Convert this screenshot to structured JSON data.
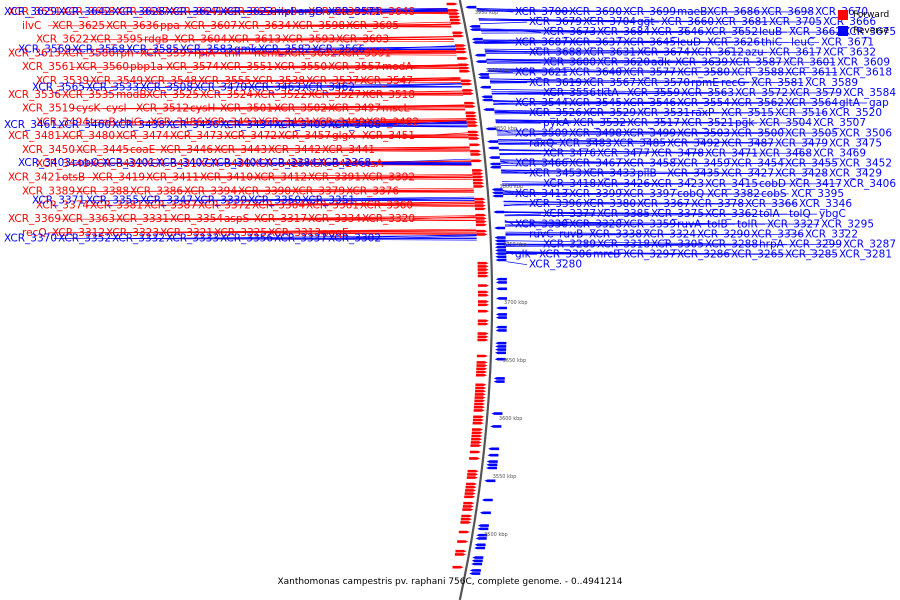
{
  "caption": "Xanthomonas campestris pv. raphani 756C, complete genome. - 0..4941214",
  "colors": {
    "forward": "#ff0000",
    "reverse": "#0000ff",
    "backbone": "#555555"
  },
  "legend": [
    {
      "label": "Forward",
      "color": "#ff0000"
    },
    {
      "label": "Reverse",
      "color": "#0000ff"
    }
  ],
  "ticks": [
    "3950 kbp",
    "3900 kbp",
    "3850 kbp",
    "3800 kbp",
    "3750 kbp",
    "3700 kbp",
    "3650 kbp",
    "3600 kbp",
    "3550 kbp",
    "3500 kbp"
  ],
  "forward_labels": [
    "XCR_3651",
    "XCR_3658",
    "XCR_3667",
    "XCR_3641",
    "XCR_3650",
    "ilvB",
    "XCR_3638",
    "XCR_3648",
    "ilvC",
    "XCR_3625",
    "XCR_3636",
    "ppa",
    "XCR_3607",
    "XCR_3634",
    "XCR_3598",
    "XCR_3605",
    "XCR_3622",
    "XCR_3595",
    "rdgB",
    "XCR_3604",
    "XCR_3613",
    "XCR_3593",
    "XCR_3603",
    "XCR_3615",
    "XCR_3586",
    "rph",
    "XCR_3597",
    "rpiA",
    "thiF",
    "hemL",
    "XCR_3602",
    "XCR_3591",
    "XCR_3561",
    "XCR_3560",
    "pbp1a",
    "XCR_3574",
    "XCR_3551",
    "XCR_3550",
    "XCR_3557",
    "modA",
    "XCR_3539",
    "XCR_3549",
    "XCR_3548",
    "XCR_3555",
    "XCR_3538",
    "XCR_3537",
    "XCR_3547",
    "XCR_3536",
    "XCR_3535",
    "modB",
    "XCR_3525",
    "XCR_3524",
    "XCR_3522",
    "XCR_3527",
    "XCR_3518",
    "XCR_3519",
    "cysK",
    "cysI",
    "XCR_3512",
    "cysH",
    "XCR_3501",
    "XCR_3502",
    "XCR_3497",
    "mscL",
    "XCR_3494",
    "trmB",
    "thiG",
    "XCR_3486",
    "XCR_3493",
    "XCR_3491",
    "XCR_3490",
    "XCR_3482",
    "XCR_3481",
    "XCR_3480",
    "XCR_3474",
    "XCR_3473",
    "XCR_3472",
    "XCR_3457",
    "glgX",
    "XCR_3451",
    "XCR_3450",
    "XCR_3445",
    "coaE",
    "XCR_3446",
    "XCR_3443",
    "XCR_3442",
    "XCR_3441",
    "XCR_3440",
    "XCR_3432",
    "XCR_3431",
    "XCR_3430",
    "XCR_3425",
    "XCR_3424",
    "otsA",
    "XCR_3421",
    "otsB",
    "XCR_3419",
    "XCR_3411",
    "XCR_3410",
    "XCR_3412",
    "XCR_3391",
    "XCR_3392",
    "XCR_3389",
    "XCR_3388",
    "XCR_3386",
    "XCR_3394",
    "XCR_3390",
    "XCR_3379",
    "XCR_3376",
    "XCR_3374",
    "XCR_3381",
    "XCR_3387",
    "XCR_3372",
    "XCR_3364",
    "XCR_3361",
    "XCR_3360",
    "XCR_3369",
    "XCR_3363",
    "XCR_3331",
    "XCR_3354",
    "aspS",
    "XCR_3317",
    "XCR_3334",
    "XCR_3320",
    "recQ",
    "XCR_3312",
    "XCR_3323",
    "XCR_3321",
    "XCR_3325",
    "XCR_3313",
    "pqqE"
  ],
  "reverse_left_labels": [
    "XCR_3629",
    "XCR_3642",
    "XCR_3628",
    "XCR_3627",
    "XCR_3623",
    "mpl",
    "argD",
    "XCR_3571",
    "XCR_3569",
    "XCR_3568",
    "XCR_3585",
    "XCR_3583",
    "gmk",
    "XCR_3582",
    "XCR_3566",
    "XCR_3565",
    "XCR_3533",
    "XCR_3508",
    "XCR_3470",
    "XCR_3463",
    "XCR_3462",
    "XCR_3461",
    "XCR_3460",
    "XCR_3438",
    "XCR_3436",
    "XCR_3434",
    "XCR_3409",
    "XCR_3408",
    "XCR_3403",
    "cobO",
    "XCR_3401",
    "XCR_3407",
    "XCR_3404",
    "XCR_3384",
    "XCR_3368",
    "XCR_3371",
    "XCR_3355",
    "XCR_3347",
    "XCR_3339",
    "XCR_3350",
    "XCR_3351",
    "XCR_3370",
    "XCR_3352",
    "XCR_3332",
    "XCR_3333",
    "XCR_3356",
    "XCR_3337",
    "XCR_3302"
  ],
  "reverse_right_labels": [
    "XCR_3700",
    "XCR_3690",
    "XCR_3699",
    "maeB",
    "XCR_3686",
    "XCR_3698",
    "XCR_3670",
    "XCR_3679",
    "XCR_3704",
    "ggt",
    "XCR_3660",
    "XCR_3681",
    "XCR_3705",
    "XCR_3666",
    "XCR_3673",
    "XCR_3684",
    "XCR_3646",
    "XCR_3652",
    "leuB",
    "XCR_3662",
    "XCR_3675",
    "XCR_3687",
    "XCR_3637",
    "XCR_3645",
    "leuD",
    "XCR_3626",
    "thiC",
    "leuC",
    "XCR_3671",
    "XCR_3688",
    "XCR_3631",
    "XCR_3674",
    "XCR_3612",
    "azu",
    "XCR_3617",
    "XCR_3632",
    "XCR_3600",
    "XCR_3620",
    "adk",
    "XCR_3639",
    "XCR_3587",
    "XCR_3601",
    "XCR_3609",
    "XCR_3621",
    "XCR_3640",
    "XCR_3577",
    "XCR_3580",
    "XCR_3588",
    "XCR_3611",
    "XCR_3618",
    "XCR_3619",
    "XCR_3567",
    "XCR_3570",
    "rpmE",
    "recG",
    "XCR_3581",
    "XCR_3589",
    "XCR_3556",
    "tktA",
    "XCR_3559",
    "XCR_3563",
    "XCR_3572",
    "XCR_3579",
    "XCR_3584",
    "XCR_3544",
    "XCR_3545",
    "XCR_3546",
    "XCR_3554",
    "XCR_3562",
    "XCR_3564",
    "gltA",
    "gap",
    "XCR_3526",
    "XCR_3529",
    "XCR_3531",
    "raxP",
    "XCR_3515",
    "XCR_3516",
    "XCR_3520",
    "pykA",
    "XCR_3532",
    "XCR_3517",
    "XCR_3521",
    "pgk",
    "XCR_3504",
    "XCR_3507",
    "XCR_3509",
    "XCR_3498",
    "XCR_3499",
    "XCR_3503",
    "XCR_3500",
    "XCR_3505",
    "XCR_3506",
    "raxQ",
    "XCR_3483",
    "XCR_3485",
    "XCR_3492",
    "XCR_3487",
    "XCR_3479",
    "XCR_3475",
    "XCR_3476",
    "XCR_3477",
    "XCR_3478",
    "XCR_3471",
    "XCR_3468",
    "XCR_3469",
    "XCR_3466",
    "XCR_3467",
    "XCR_3458",
    "XCR_3459",
    "XCR_3454",
    "XCR_3455",
    "XCR_3452",
    "XCR_3453",
    "XCR_3433",
    "pilB",
    "XCR_3435",
    "XCR_3427",
    "XCR_3428",
    "XCR_3429",
    "XCR_3418",
    "XCR_3426",
    "XCR_3423",
    "XCR_3415",
    "cobD",
    "XCR_3417",
    "XCR_3406",
    "XCR_3413",
    "XCR_3399",
    "XCR_3397",
    "cobQ",
    "XCR_3382",
    "cobS",
    "XCR_3395",
    "XCR_3396",
    "XCR_3380",
    "XCR_3367",
    "XCR_3378",
    "XCR_3366",
    "XCR_3346",
    "XCR_3377",
    "XCR_3385",
    "XCR_3375",
    "XCR_3362",
    "tolA",
    "tolQ",
    "ybgC",
    "XCR_3330",
    "XCR_3328",
    "XCR_3359",
    "ruvA",
    "tolB",
    "tolR",
    "XCR_3327",
    "XCR_3295",
    "ruvC",
    "ruvB",
    "XCR_3338",
    "XCR_3324",
    "XCR_3290",
    "XCR_3336",
    "XCR_3322",
    "XCR_3289",
    "XCR_3318",
    "XCR_3305",
    "XCR_3288",
    "hrpA",
    "XCR_3299",
    "XCR_3287",
    "glk",
    "XCR_3306",
    "mrcB",
    "XCR_3297",
    "XCR_3286",
    "XCR_3265",
    "XCR_3285",
    "XCR_3281",
    "XCR_3280"
  ]
}
